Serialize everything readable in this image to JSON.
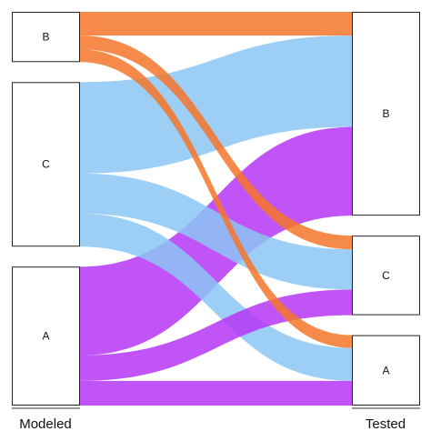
{
  "diagram": {
    "type": "alluvial",
    "axes": [
      {
        "id": "modeled",
        "label": "Modeled",
        "nodes": [
          {
            "id": "B",
            "label": "B"
          },
          {
            "id": "C",
            "label": "C"
          },
          {
            "id": "A",
            "label": "A"
          }
        ]
      },
      {
        "id": "tested",
        "label": "Tested",
        "nodes": [
          {
            "id": "B",
            "label": "B"
          },
          {
            "id": "C",
            "label": "C"
          },
          {
            "id": "A",
            "label": "A"
          }
        ]
      }
    ],
    "colors": {
      "A": "#b536f5",
      "B": "#f5762a",
      "C": "#8cc7f5"
    },
    "opacity": 0.85,
    "flows": [
      {
        "from": "B",
        "to": "B",
        "value": 26
      },
      {
        "from": "B",
        "to": "C",
        "value": 15
      },
      {
        "from": "B",
        "to": "A",
        "value": 14
      },
      {
        "from": "C",
        "to": "B",
        "value": 100
      },
      {
        "from": "C",
        "to": "C",
        "value": 44
      },
      {
        "from": "C",
        "to": "A",
        "value": 36
      },
      {
        "from": "A",
        "to": "B",
        "value": 97
      },
      {
        "from": "A",
        "to": "C",
        "value": 28
      },
      {
        "from": "A",
        "to": "A",
        "value": 27
      }
    ]
  }
}
